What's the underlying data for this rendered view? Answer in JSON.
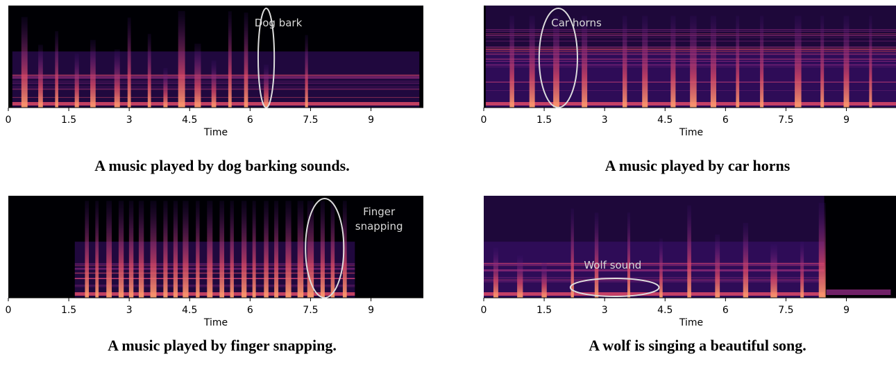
{
  "colors": {
    "background": "#000004",
    "low": "#3b0f70",
    "mid": "#8c2981",
    "high": "#de4968",
    "peak": "#fe9f6d",
    "annotation": "#dddddd"
  },
  "chart_data": [
    {
      "type": "heatmap",
      "title": "",
      "xlabel": "Time",
      "ylabel": "",
      "xlim": [
        0,
        10.3
      ],
      "xticks": [
        0,
        1.5,
        3,
        4.5,
        6,
        7.5,
        9
      ],
      "xtick_labels": [
        "0",
        "1.5",
        "3",
        "4.5",
        "6",
        "7.5",
        "9"
      ],
      "annotation": {
        "label": "Dog bark",
        "x_center": 6.4,
        "x_width": 0.4,
        "label_x": 6.7
      },
      "caption": "A music played by dog barking sounds.",
      "sound_start": 0.1,
      "sound_end": 10.2,
      "onsets": [
        0.4,
        0.8,
        1.2,
        1.7,
        2.1,
        2.7,
        3.0,
        3.5,
        3.9,
        4.3,
        4.7,
        5.1,
        5.5,
        5.9,
        6.4,
        7.4
      ]
    },
    {
      "type": "heatmap",
      "title": "",
      "xlabel": "Time",
      "ylabel": "",
      "xlim": [
        0,
        10.3
      ],
      "xticks": [
        0,
        1.5,
        3,
        4.5,
        6,
        7.5,
        9
      ],
      "xtick_labels": [
        "0",
        "1.5",
        "3",
        "4.5",
        "6",
        "7.5",
        "9"
      ],
      "annotation": {
        "label": "Car horns",
        "x_center": 1.85,
        "x_width": 0.95,
        "label_x": 2.3
      },
      "caption": "A music played by car horns",
      "sound_start": 0.05,
      "sound_end": 10.3,
      "onsets": [
        0.7,
        1.2,
        1.8,
        2.5,
        3.5,
        4.0,
        4.7,
        5.2,
        5.7,
        6.3,
        6.9,
        7.8,
        8.4,
        9.0,
        9.6
      ]
    },
    {
      "type": "heatmap",
      "title": "",
      "xlabel": "Time",
      "ylabel": "",
      "xlim": [
        0,
        10.3
      ],
      "xticks": [
        0,
        1.5,
        3,
        4.5,
        6,
        7.5,
        9
      ],
      "xtick_labels": [
        "0",
        "1.5",
        "3",
        "4.5",
        "6",
        "7.5",
        "9"
      ],
      "annotation": {
        "label": "Finger snapping",
        "label_lines": [
          "Finger",
          "snapping"
        ],
        "x_center": 7.85,
        "x_width": 0.95,
        "label_x": 9.2
      },
      "caption": "A music played by finger snapping.",
      "sound_start": 1.65,
      "sound_end": 8.6,
      "onsets": [
        1.95,
        2.2,
        2.5,
        2.8,
        3.05,
        3.3,
        3.6,
        3.9,
        4.15,
        4.4,
        4.7,
        5.0,
        5.3,
        5.55,
        5.85,
        6.1,
        6.4,
        6.65,
        6.95,
        7.25,
        7.5,
        7.8,
        8.05,
        8.35
      ]
    },
    {
      "type": "heatmap",
      "title": "",
      "xlabel": "Time",
      "ylabel": "",
      "xlim": [
        0,
        10.3
      ],
      "xticks": [
        0,
        1.5,
        3,
        4.5,
        6,
        7.5,
        9
      ],
      "xtick_labels": [
        "0",
        "1.5",
        "3",
        "4.5",
        "6",
        "7.5",
        "9"
      ],
      "annotation": {
        "label": "Wolf sound",
        "x_center": 3.25,
        "x_width": 2.2,
        "label_x": 3.2
      },
      "caption": "A wolf is singing a beautiful song.",
      "sound_start": 0.0,
      "sound_end": 8.45,
      "onsets": [
        0.3,
        0.9,
        1.5,
        2.2,
        2.8,
        3.6,
        4.4,
        5.1,
        5.8,
        6.5,
        7.2,
        7.9,
        8.4
      ]
    }
  ]
}
